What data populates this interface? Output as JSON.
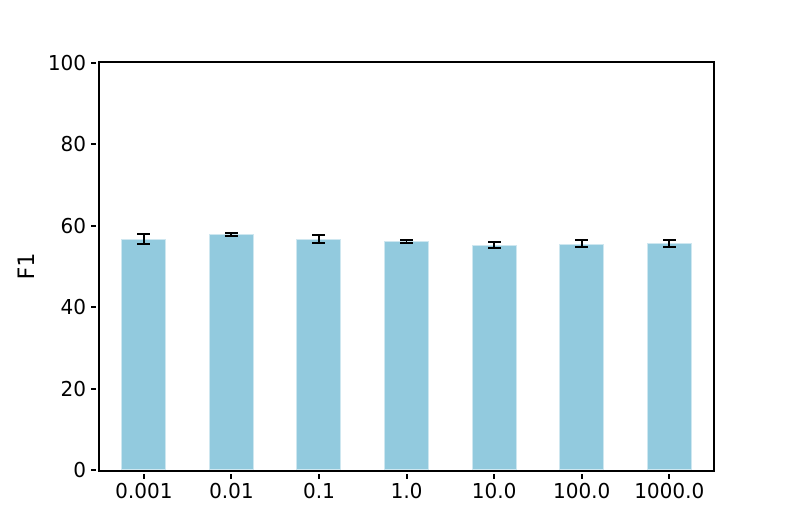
{
  "chart_data": {
    "type": "bar",
    "categories": [
      "0.001",
      "0.01",
      "0.1",
      "1.0",
      "10.0",
      "100.0",
      "1000.0"
    ],
    "values": [
      56.8,
      57.9,
      56.8,
      56.2,
      55.3,
      55.6,
      55.7
    ],
    "errors": [
      1.2,
      0.3,
      1.0,
      0.4,
      0.7,
      0.8,
      0.8
    ],
    "title": "",
    "xlabel": "",
    "ylabel": "F1",
    "ylim": [
      0,
      100
    ],
    "yticks": [
      0,
      20,
      40,
      60,
      80,
      100
    ],
    "grid": false,
    "legend": null,
    "bar_color": "#92cade",
    "error_color": "#000000",
    "axis_color": "#000000",
    "background_color": "#ffffff"
  }
}
